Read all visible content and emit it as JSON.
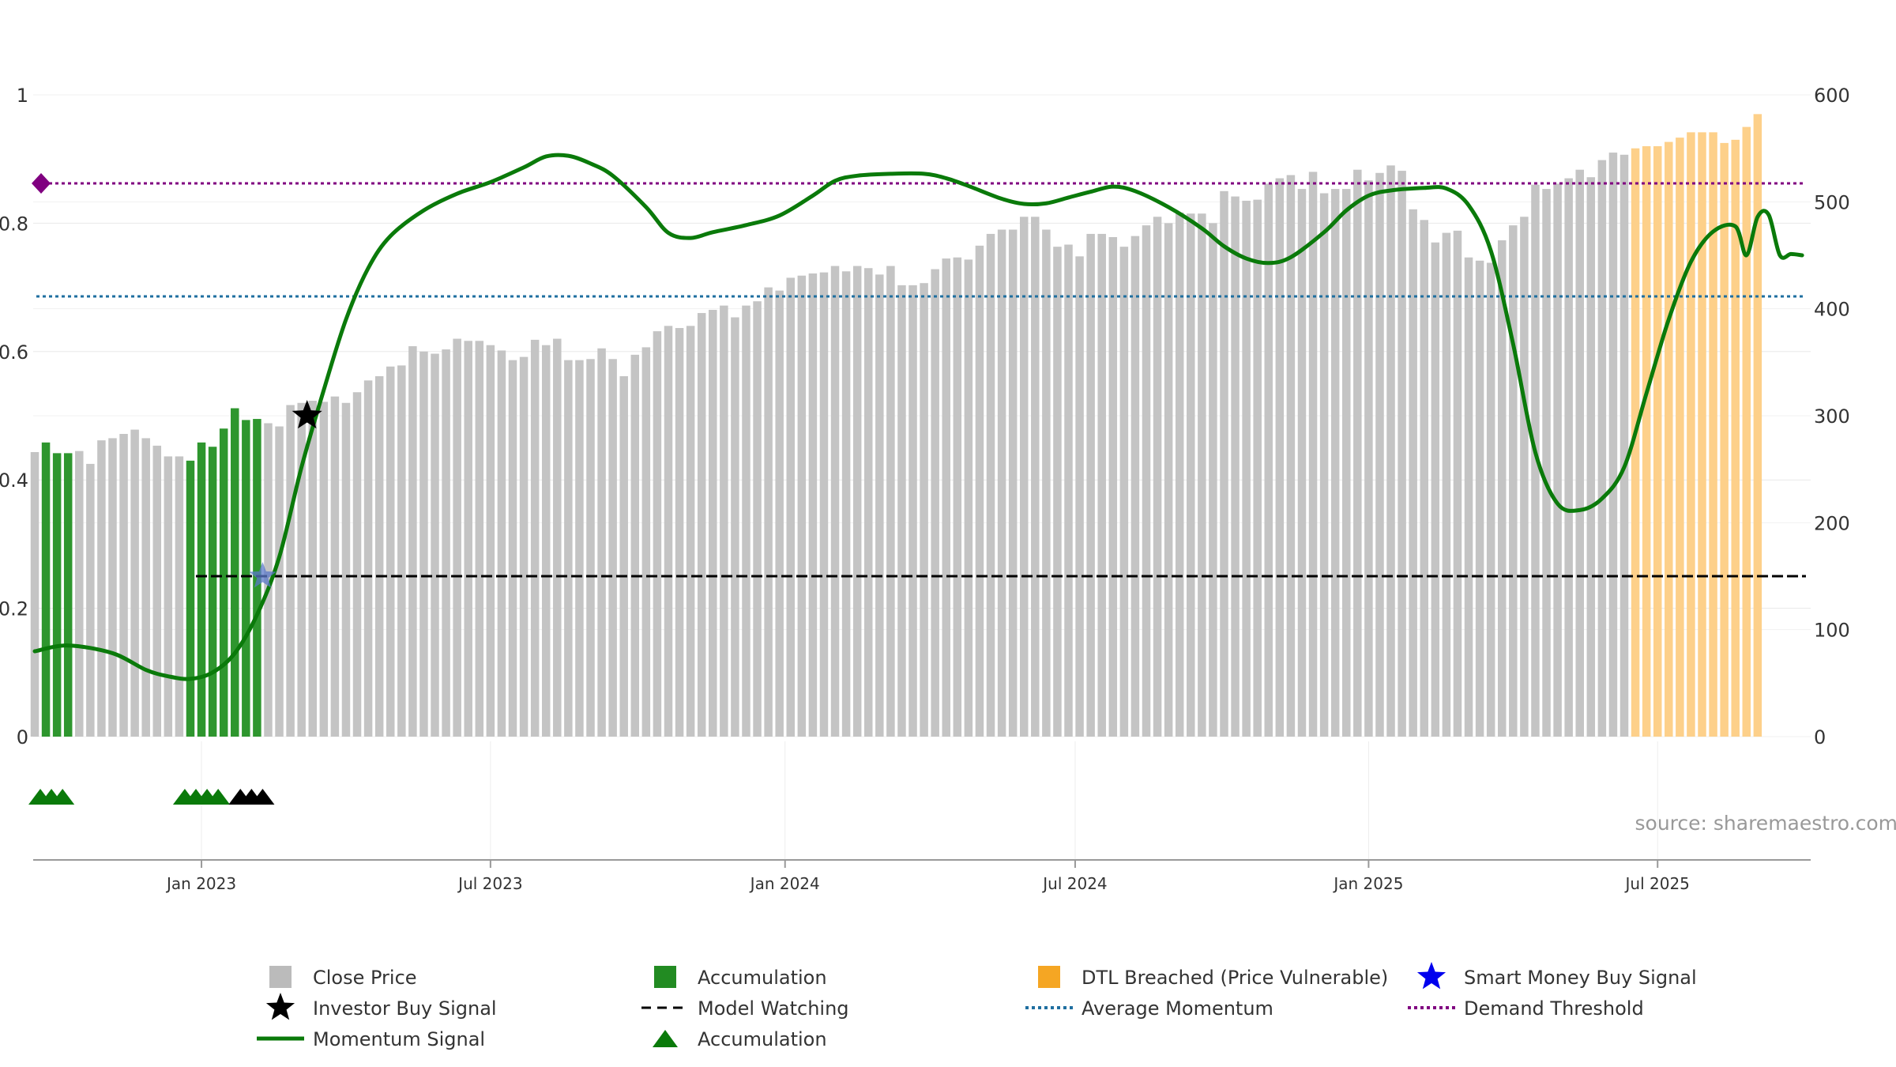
{
  "chart_data": {
    "type": "bar",
    "source": "source: sharemaestro.com",
    "left_axis": {
      "min": 0,
      "max": 1,
      "ticks": [
        0,
        0.2,
        0.4,
        0.6,
        0.8,
        1
      ],
      "tick_labels": [
        "0",
        "0.2",
        "0.4",
        "0.6",
        "0.8",
        "1"
      ]
    },
    "right_axis": {
      "min": 0,
      "max": 600,
      "ticks": [
        0,
        100,
        200,
        300,
        400,
        500,
        600
      ],
      "tick_labels": [
        "0",
        "100",
        "200",
        "300",
        "400",
        "500",
        "600"
      ]
    },
    "x_ticks": [
      {
        "label": "Jan 2023",
        "week": 15
      },
      {
        "label": "Jul 2023",
        "week": 41
      },
      {
        "label": "Jan 2024",
        "week": 67.5
      },
      {
        "label": "Jul 2024",
        "week": 93.6
      },
      {
        "label": "Jan 2025",
        "week": 120
      },
      {
        "label": "Jul 2025",
        "week": 146
      }
    ],
    "close_price": [
      266,
      275,
      265,
      265,
      267,
      255,
      277,
      279,
      283,
      287,
      279,
      272,
      262,
      262,
      258,
      275,
      271,
      288,
      307,
      296,
      297,
      293,
      290,
      310,
      312,
      314,
      313,
      318,
      312,
      322,
      333,
      337,
      346,
      347,
      365,
      360,
      358,
      362,
      372,
      370,
      370,
      366,
      361,
      352,
      355,
      371,
      366,
      372,
      352,
      352,
      353,
      363,
      353,
      337,
      357,
      364,
      379,
      384,
      382,
      384,
      396,
      399,
      403,
      392,
      403,
      407,
      420,
      417,
      429,
      431,
      433,
      434,
      440,
      435,
      440,
      438,
      432,
      440,
      422,
      422,
      424,
      437,
      447,
      448,
      446,
      459,
      470,
      474,
      474,
      486,
      486,
      474,
      458,
      460,
      449,
      470,
      470,
      467,
      458,
      468,
      478,
      486,
      480,
      490,
      489,
      489,
      480,
      510,
      505,
      501,
      502,
      517,
      522,
      525,
      512,
      528,
      508,
      512,
      512,
      530,
      520,
      527,
      534,
      529,
      493,
      483,
      462,
      471,
      473,
      448,
      445,
      443,
      464,
      478,
      486,
      516,
      512,
      517,
      522,
      530,
      523,
      539,
      546,
      544,
      550,
      552,
      552,
      556,
      560,
      565,
      565,
      565,
      555,
      558,
      570,
      582
    ],
    "accumulation_weeks": [
      1,
      2,
      3,
      14,
      15,
      16,
      17,
      18,
      19,
      20
    ],
    "dtl_breached_from_week": 144,
    "momentum_signal": [
      [
        0,
        0.133
      ],
      [
        3,
        0.142
      ],
      [
        7,
        0.13
      ],
      [
        10,
        0.104
      ],
      [
        12,
        0.094
      ],
      [
        14,
        0.09
      ],
      [
        16,
        0.1
      ],
      [
        18,
        0.13
      ],
      [
        20,
        0.19
      ],
      [
        22,
        0.28
      ],
      [
        24,
        0.42
      ],
      [
        26,
        0.54
      ],
      [
        28,
        0.65
      ],
      [
        30,
        0.73
      ],
      [
        32,
        0.78
      ],
      [
        35,
        0.82
      ],
      [
        38,
        0.846
      ],
      [
        41,
        0.864
      ],
      [
        44,
        0.887
      ],
      [
        46,
        0.904
      ],
      [
        48,
        0.905
      ],
      [
        50,
        0.893
      ],
      [
        52,
        0.874
      ],
      [
        55,
        0.825
      ],
      [
        57,
        0.785
      ],
      [
        59,
        0.777
      ],
      [
        61,
        0.786
      ],
      [
        64,
        0.797
      ],
      [
        67,
        0.812
      ],
      [
        70,
        0.843
      ],
      [
        72,
        0.866
      ],
      [
        74,
        0.874
      ],
      [
        77,
        0.877
      ],
      [
        80,
        0.877
      ],
      [
        82,
        0.87
      ],
      [
        84,
        0.858
      ],
      [
        87,
        0.838
      ],
      [
        89,
        0.83
      ],
      [
        91,
        0.831
      ],
      [
        93,
        0.84
      ],
      [
        95,
        0.849
      ],
      [
        97,
        0.857
      ],
      [
        99,
        0.85
      ],
      [
        102,
        0.825
      ],
      [
        105,
        0.792
      ],
      [
        107,
        0.764
      ],
      [
        109,
        0.745
      ],
      [
        111,
        0.738
      ],
      [
        113,
        0.747
      ],
      [
        116,
        0.786
      ],
      [
        118,
        0.82
      ],
      [
        120,
        0.843
      ],
      [
        122,
        0.851
      ],
      [
        125,
        0.855
      ],
      [
        127,
        0.854
      ],
      [
        129,
        0.828
      ],
      [
        131,
        0.757
      ],
      [
        133,
        0.612
      ],
      [
        135,
        0.443
      ],
      [
        137,
        0.363
      ],
      [
        139,
        0.353
      ],
      [
        141,
        0.371
      ],
      [
        143,
        0.42
      ],
      [
        145,
        0.535
      ],
      [
        147,
        0.65
      ],
      [
        149,
        0.74
      ],
      [
        151,
        0.787
      ],
      [
        153,
        0.795
      ],
      [
        154,
        0.75
      ],
      [
        155,
        0.81
      ],
      [
        156,
        0.813
      ],
      [
        157,
        0.75
      ],
      [
        158,
        0.752
      ],
      [
        159,
        0.75
      ]
    ],
    "average_momentum": 0.686,
    "demand_threshold": 0.862,
    "model_watching_level": 0.25,
    "model_watching_start_week": 14.5,
    "investor_buy_signal": {
      "week": 24.5,
      "value": 0.5
    },
    "smart_money_buy_signal": {
      "week": 20.5,
      "value": 0.25
    },
    "accumulation_triangles": [
      0.5,
      1.5,
      2.5,
      13.5,
      14.5,
      15.5,
      16.5
    ],
    "investor_triangles": [
      18.5,
      19.5,
      20.5
    ],
    "legend": [
      {
        "label": "Close Price",
        "kind": "square",
        "color": "#bbbbbb"
      },
      {
        "label": "Accumulation",
        "kind": "square",
        "color": "#228b22"
      },
      {
        "label": "DTL Breached (Price Vulnerable)",
        "kind": "square",
        "color": "#f5a623"
      },
      {
        "label": "Smart Money Buy Signal",
        "kind": "star",
        "color": "#0000ee"
      },
      {
        "label": "Investor Buy Signal",
        "kind": "star",
        "color": "#000000"
      },
      {
        "label": "Model Watching",
        "kind": "dash",
        "color": "#000000"
      },
      {
        "label": "Average Momentum",
        "kind": "dot",
        "color": "#1f6fa0"
      },
      {
        "label": "Demand Threshold",
        "kind": "dot",
        "color": "#800080"
      },
      {
        "label": "Momentum Signal",
        "kind": "line",
        "color": "#0a7a0a"
      },
      {
        "label": "Accumulation",
        "kind": "triangle",
        "color": "#0a7a0a"
      }
    ],
    "colors": {
      "close": "#c4c4c4",
      "accumulation": "#2e962e",
      "dtl": "#fdd08a",
      "momentum": "#0a7a0a",
      "average_momentum": "#1f6fa0",
      "demand_threshold": "#800080",
      "model_watching": "#000000",
      "grid": "#e8e8e8"
    }
  }
}
